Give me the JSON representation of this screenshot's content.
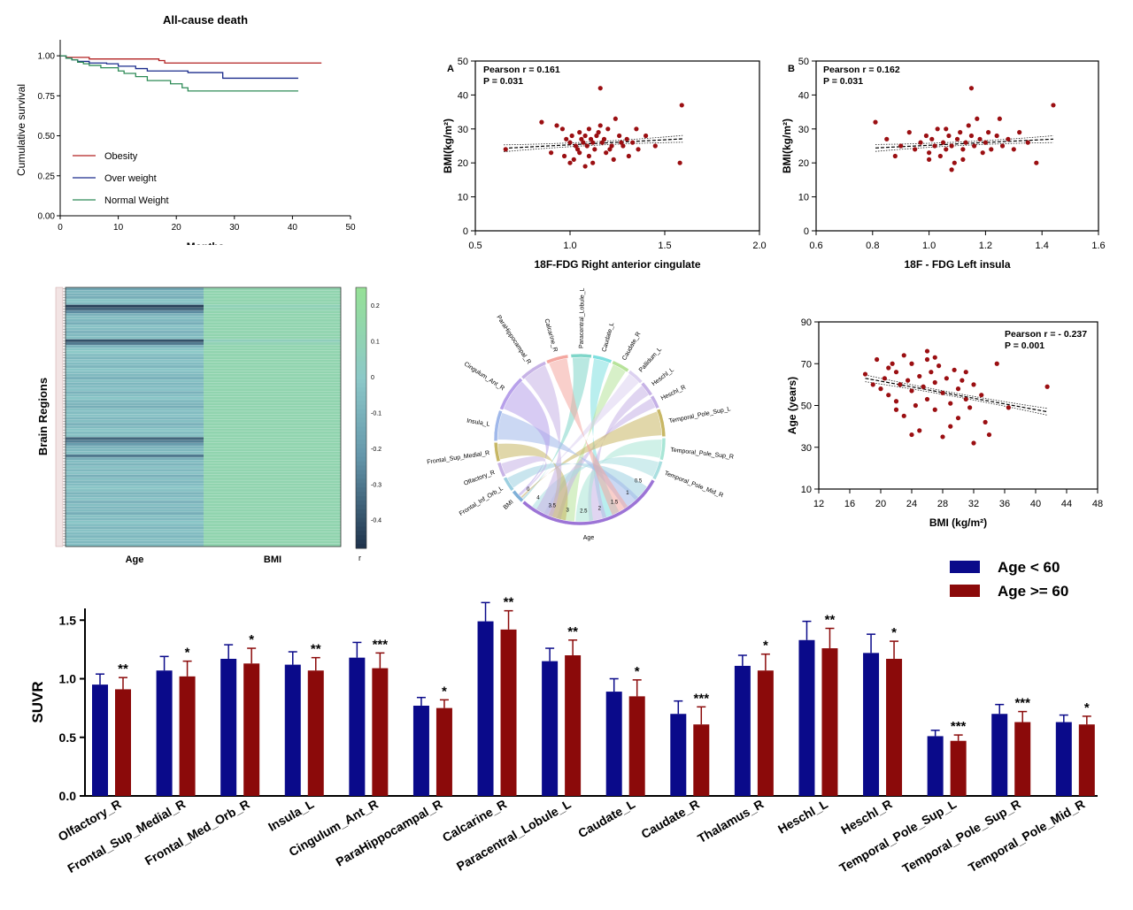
{
  "colors": {
    "obesity": "#b22222",
    "overweight": "#1a2b8c",
    "normal": "#2e8b57",
    "scatter_point": "#9b0f12",
    "young": "#0a0a8a",
    "old": "#8b0a0a",
    "axis": "#000000"
  },
  "chart_data": [
    {
      "id": "km",
      "type": "line",
      "title": "All-cause death",
      "xlabel": "Months",
      "ylabel": "Cumulative survival",
      "xlim": [
        0,
        50
      ],
      "ylim": [
        0,
        1.1
      ],
      "x_ticks": [
        "0",
        "10",
        "20",
        "30",
        "40",
        "50"
      ],
      "y_ticks": [
        "0.00",
        "0.25",
        "0.50",
        "0.75",
        "1.00"
      ],
      "legend_position": "center-left",
      "series": [
        {
          "name": "Obesity",
          "color_key": "obesity",
          "x": [
            0,
            1,
            5,
            17,
            18,
            45
          ],
          "y": [
            1.0,
            0.99,
            0.98,
            0.97,
            0.955,
            0.955
          ]
        },
        {
          "name": "Over weight",
          "color_key": "overweight",
          "x": [
            0,
            1,
            2,
            3,
            5,
            8,
            10,
            13,
            15,
            22,
            28,
            41
          ],
          "y": [
            1.0,
            0.985,
            0.975,
            0.965,
            0.955,
            0.95,
            0.935,
            0.92,
            0.905,
            0.895,
            0.86,
            0.86
          ]
        },
        {
          "name": "Normal Weight",
          "color_key": "normal",
          "x": [
            0,
            1,
            2,
            3,
            4,
            5,
            7,
            10,
            11,
            13,
            15,
            19,
            21,
            22,
            41
          ],
          "y": [
            1.0,
            0.985,
            0.975,
            0.96,
            0.95,
            0.94,
            0.925,
            0.905,
            0.89,
            0.87,
            0.845,
            0.825,
            0.8,
            0.78,
            0.78
          ]
        }
      ]
    },
    {
      "id": "scatterA",
      "type": "scatter",
      "panel_label": "A",
      "xlabel": "18F-FDG Right anterior cingulate",
      "ylabel": "BMI(kg/m²)",
      "annotation": [
        "Pearson r = 0.161",
        "P = 0.031"
      ],
      "xlim": [
        0.5,
        2.0
      ],
      "ylim": [
        0,
        50
      ],
      "x_ticks": [
        "0.5",
        "1.0",
        "1.5",
        "2.0"
      ],
      "y_ticks": [
        "0",
        "10",
        "20",
        "30",
        "40",
        "50"
      ],
      "fit": {
        "x": [
          0.65,
          1.6
        ],
        "y": [
          24.3,
          27.1
        ]
      },
      "points": [
        [
          0.85,
          32
        ],
        [
          0.93,
          31
        ],
        [
          0.96,
          30
        ],
        [
          0.98,
          27
        ],
        [
          1.0,
          26
        ],
        [
          1.01,
          28
        ],
        [
          1.03,
          25
        ],
        [
          1.04,
          24
        ],
        [
          1.05,
          23
        ],
        [
          1.06,
          27
        ],
        [
          1.07,
          26
        ],
        [
          1.08,
          28
        ],
        [
          1.09,
          25
        ],
        [
          1.1,
          30
        ],
        [
          1.11,
          27
        ],
        [
          1.12,
          26
        ],
        [
          1.13,
          24
        ],
        [
          1.14,
          28
        ],
        [
          1.15,
          29
        ],
        [
          1.16,
          31
        ],
        [
          1.17,
          26
        ],
        [
          1.18,
          27
        ],
        [
          1.2,
          30
        ],
        [
          1.21,
          24
        ],
        [
          1.22,
          25
        ],
        [
          1.24,
          33
        ],
        [
          1.26,
          28
        ],
        [
          1.28,
          25
        ],
        [
          1.3,
          27
        ],
        [
          1.33,
          26
        ],
        [
          1.36,
          24
        ],
        [
          1.4,
          28
        ],
        [
          1.45,
          25
        ],
        [
          1.58,
          20
        ],
        [
          1.59,
          37
        ],
        [
          1.16,
          42
        ],
        [
          0.66,
          24
        ],
        [
          0.9,
          23
        ],
        [
          1.02,
          21
        ],
        [
          1.05,
          29
        ],
        [
          1.1,
          22
        ],
        [
          1.12,
          20
        ],
        [
          1.19,
          23
        ],
        [
          1.23,
          21
        ],
        [
          1.27,
          26
        ],
        [
          1.31,
          22
        ],
        [
          1.35,
          30
        ],
        [
          1.08,
          19
        ],
        [
          1.0,
          20
        ],
        [
          0.97,
          22
        ]
      ]
    },
    {
      "id": "scatterB",
      "type": "scatter",
      "panel_label": "B",
      "xlabel": "18F - FDG Left insula",
      "ylabel": "BMI(kg/m²)",
      "annotation": [
        "Pearson r = 0.162",
        "P = 0.031"
      ],
      "xlim": [
        0.6,
        1.6
      ],
      "ylim": [
        0,
        50
      ],
      "x_ticks": [
        "0.6",
        "0.8",
        "1.0",
        "1.2",
        "1.4",
        "1.6"
      ],
      "y_ticks": [
        "0",
        "10",
        "20",
        "30",
        "40",
        "50"
      ],
      "fit": {
        "x": [
          0.81,
          1.44
        ],
        "y": [
          24.4,
          27.0
        ]
      },
      "points": [
        [
          0.81,
          32
        ],
        [
          0.85,
          27
        ],
        [
          0.9,
          25
        ],
        [
          0.93,
          29
        ],
        [
          0.95,
          24
        ],
        [
          0.97,
          26
        ],
        [
          0.99,
          28
        ],
        [
          1.0,
          23
        ],
        [
          1.01,
          27
        ],
        [
          1.02,
          25
        ],
        [
          1.03,
          30
        ],
        [
          1.04,
          22
        ],
        [
          1.05,
          26
        ],
        [
          1.06,
          24
        ],
        [
          1.07,
          28
        ],
        [
          1.08,
          25
        ],
        [
          1.09,
          20
        ],
        [
          1.1,
          27
        ],
        [
          1.11,
          29
        ],
        [
          1.12,
          24
        ],
        [
          1.13,
          26
        ],
        [
          1.14,
          31
        ],
        [
          1.15,
          28
        ],
        [
          1.16,
          25
        ],
        [
          1.17,
          33
        ],
        [
          1.18,
          27
        ],
        [
          1.19,
          23
        ],
        [
          1.2,
          26
        ],
        [
          1.21,
          29
        ],
        [
          1.22,
          24
        ],
        [
          1.24,
          28
        ],
        [
          1.26,
          25
        ],
        [
          1.28,
          27
        ],
        [
          1.3,
          24
        ],
        [
          1.32,
          29
        ],
        [
          1.35,
          26
        ],
        [
          1.38,
          20
        ],
        [
          1.44,
          37
        ],
        [
          1.15,
          42
        ],
        [
          1.12,
          21
        ],
        [
          1.06,
          30
        ],
        [
          0.88,
          22
        ],
        [
          1.0,
          21
        ],
        [
          1.25,
          33
        ],
        [
          1.08,
          18
        ]
      ]
    },
    {
      "id": "heatmap",
      "type": "heatmap",
      "ylabel": "Brain Regions",
      "columns": [
        "Age",
        "BMI"
      ],
      "colorbar_label": "r",
      "colorbar_ticks": [
        "0.2",
        "0.1",
        "0",
        "-0.1",
        "-0.2",
        "-0.3",
        "-0.4"
      ],
      "range": [
        -0.48,
        0.25
      ],
      "row_count": 90,
      "age_r": [
        -0.15,
        -0.08,
        -0.1,
        -0.12,
        -0.02,
        -0.06,
        -0.44,
        -0.35,
        -0.25,
        -0.1,
        -0.05,
        -0.08,
        -0.12,
        -0.03,
        -0.06,
        -0.1,
        -0.07,
        -0.04,
        -0.4,
        -0.3,
        -0.1,
        -0.02,
        0.0,
        -0.05,
        -0.08,
        -0.03,
        -0.06,
        -0.09,
        -0.02,
        -0.05,
        -0.07,
        -0.11,
        -0.04,
        -0.08,
        -0.06,
        -0.03,
        -0.1,
        -0.05,
        -0.02,
        -0.07,
        -0.09,
        -0.12,
        -0.04,
        -0.06,
        -0.03,
        -0.08,
        -0.05,
        -0.1,
        -0.07,
        -0.02,
        -0.06,
        -0.04,
        -0.35,
        -0.28,
        -0.2,
        -0.1,
        -0.08,
        -0.05,
        -0.3,
        -0.12,
        -0.06,
        -0.09,
        -0.04,
        -0.07,
        -0.03,
        -0.11,
        -0.05,
        -0.08,
        -0.06,
        -0.02,
        -0.04,
        -0.09,
        -0.07,
        -0.03,
        -0.1,
        -0.05,
        -0.08,
        -0.06,
        -0.12,
        -0.04,
        -0.07,
        -0.02,
        -0.05,
        -0.09,
        -0.03,
        -0.06,
        -0.08,
        -0.04,
        -0.07,
        -0.05
      ],
      "bmi_r": [
        0.12,
        0.12,
        0.12,
        0.12,
        0.12,
        0.12,
        0.08,
        0.1,
        0.12,
        0.12,
        0.12,
        0.12,
        0.12,
        0.12,
        0.12,
        0.12,
        0.12,
        0.12,
        0.06,
        0.1,
        0.12,
        0.12,
        0.12,
        0.12,
        0.12,
        0.12,
        0.12,
        0.12,
        0.12,
        0.12,
        0.12,
        0.12,
        0.12,
        0.12,
        0.12,
        0.12,
        0.12,
        0.12,
        0.12,
        0.12,
        0.12,
        0.12,
        0.12,
        0.12,
        0.12,
        0.12,
        0.12,
        0.12,
        0.12,
        0.12,
        0.12,
        0.12,
        0.12,
        0.12,
        0.12,
        0.12,
        0.12,
        0.12,
        0.12,
        0.12,
        0.12,
        0.12,
        0.12,
        0.12,
        0.12,
        0.12,
        0.12,
        0.12,
        0.12,
        0.12,
        0.12,
        0.12,
        0.12,
        0.12,
        0.12,
        0.12,
        0.12,
        0.12,
        0.12,
        0.12,
        0.12,
        0.12,
        0.12,
        0.12,
        0.12,
        0.12,
        0.12,
        0.12,
        0.12,
        0.12
      ]
    },
    {
      "id": "chord",
      "type": "chord",
      "sectors": [
        "Paracentral_Lobule_L",
        "Caudate_L",
        "Caudate_R",
        "Pallidum_L",
        "Heschl_L",
        "Heschl_R",
        "Temporal_Pole_Sup_L",
        "Temporal_Pole_Sup_R",
        "Temporal_Pole_Mid_R",
        "Age",
        "BMI",
        "Frontal_Inf_Orb_L",
        "Olfactory_R",
        "Frontal_Sup_Medial_R",
        "Insula_L",
        "Cingulum_Ant_R",
        "ParaHippocampal_R",
        "Calcarine_R"
      ],
      "sector_colors": [
        "#7fd6c9",
        "#7fe0e0",
        "#b7e39a",
        "#dcd1f0",
        "#c7b3e6",
        "#c4b0e6",
        "#c8b765",
        "#a9e6d6",
        "#a9dfe0",
        "#9c74d6",
        "#7fb0d8",
        "#9ccfe0",
        "#c7b3e6",
        "#c7b765",
        "#a0b8ea",
        "#b7a0ea",
        "#c7b3e6",
        "#f4a7a0"
      ],
      "age_ticks": [
        "4",
        "3.5",
        "3",
        "2.5",
        "2",
        "1.5",
        "1",
        "0.5"
      ],
      "bmi_ticks": [
        "0"
      ],
      "age_axis_label": "Age"
    },
    {
      "id": "scatterC",
      "type": "scatter",
      "xlabel": "BMI (kg/m²)",
      "ylabel": "Age (years)",
      "annotation": [
        "Pearson r = - 0.237",
        "P = 0.001"
      ],
      "xlim": [
        12,
        48
      ],
      "ylim": [
        10,
        90
      ],
      "x_ticks": [
        "12",
        "16",
        "20",
        "24",
        "28",
        "32",
        "36",
        "40",
        "44",
        "48"
      ],
      "y_ticks": [
        "10",
        "30",
        "50",
        "70",
        "90"
      ],
      "fit": {
        "x": [
          18,
          41.5
        ],
        "y": [
          63,
          47
        ]
      },
      "points": [
        [
          18,
          65
        ],
        [
          19,
          60
        ],
        [
          19.5,
          72
        ],
        [
          20,
          58
        ],
        [
          20.5,
          63
        ],
        [
          21,
          68
        ],
        [
          21,
          55
        ],
        [
          21.5,
          70
        ],
        [
          22,
          52
        ],
        [
          22,
          66
        ],
        [
          22.5,
          60
        ],
        [
          23,
          74
        ],
        [
          23,
          45
        ],
        [
          23.5,
          62
        ],
        [
          24,
          57
        ],
        [
          24,
          70
        ],
        [
          24.5,
          50
        ],
        [
          25,
          64
        ],
        [
          25,
          38
        ],
        [
          25.5,
          59
        ],
        [
          26,
          72
        ],
        [
          26,
          53
        ],
        [
          26.5,
          66
        ],
        [
          27,
          48
        ],
        [
          27,
          61
        ],
        [
          27.5,
          69
        ],
        [
          28,
          56
        ],
        [
          28,
          35
        ],
        [
          28.5,
          63
        ],
        [
          29,
          51
        ],
        [
          29.5,
          67
        ],
        [
          30,
          58
        ],
        [
          30,
          44
        ],
        [
          30.5,
          62
        ],
        [
          31,
          53
        ],
        [
          31.5,
          49
        ],
        [
          32,
          60
        ],
        [
          32,
          32
        ],
        [
          33,
          55
        ],
        [
          33.5,
          42
        ],
        [
          34,
          36
        ],
        [
          35,
          70
        ],
        [
          36.5,
          49
        ],
        [
          41.5,
          59
        ],
        [
          26,
          76
        ],
        [
          24,
          36
        ],
        [
          22,
          48
        ],
        [
          27,
          73
        ],
        [
          29,
          40
        ],
        [
          31,
          66
        ]
      ]
    },
    {
      "id": "bars",
      "type": "bar",
      "ylabel": "SUVR",
      "ylim": [
        0,
        1.6
      ],
      "y_ticks": [
        "0.0",
        "0.5",
        "1.0",
        "1.5"
      ],
      "legend_position": "top-right",
      "categories": [
        "Olfactory_R",
        "Frontal_Sup_Medial_R",
        "Frontal_Med_Orb_R",
        "Insula_L",
        "Cingulum_Ant_R",
        "ParaHippocampal_R",
        "Calcarine_R",
        "Paracentral_Lobule_L",
        "Caudate_L",
        "Caudate_R",
        "Thalamus_R",
        "Heschl_L",
        "Heschl_R",
        "Temporal_Pole_Sup_L",
        "Temporal_Pole_Sup_R",
        "Temporal_Pole_Mid_R"
      ],
      "significance": [
        "**",
        "*",
        "*",
        "**",
        "***",
        "*",
        "**",
        "**",
        "*",
        "***",
        "*",
        "**",
        "*",
        "***",
        "***",
        "*"
      ],
      "series": [
        {
          "name": "Age < 60",
          "color_key": "young",
          "values": [
            0.95,
            1.07,
            1.17,
            1.12,
            1.18,
            0.77,
            1.49,
            1.15,
            0.89,
            0.7,
            1.11,
            1.33,
            1.22,
            0.51,
            0.7,
            0.63
          ],
          "errors": [
            0.09,
            0.12,
            0.12,
            0.11,
            0.13,
            0.07,
            0.16,
            0.11,
            0.11,
            0.11,
            0.09,
            0.16,
            0.16,
            0.05,
            0.08,
            0.06
          ]
        },
        {
          "name": "Age >= 60",
          "color_key": "old",
          "values": [
            0.91,
            1.02,
            1.13,
            1.07,
            1.09,
            0.75,
            1.42,
            1.2,
            0.85,
            0.61,
            1.07,
            1.26,
            1.17,
            0.47,
            0.63,
            0.61
          ],
          "errors": [
            0.1,
            0.13,
            0.13,
            0.11,
            0.13,
            0.07,
            0.16,
            0.13,
            0.14,
            0.15,
            0.14,
            0.17,
            0.15,
            0.05,
            0.09,
            0.07
          ]
        }
      ]
    }
  ]
}
